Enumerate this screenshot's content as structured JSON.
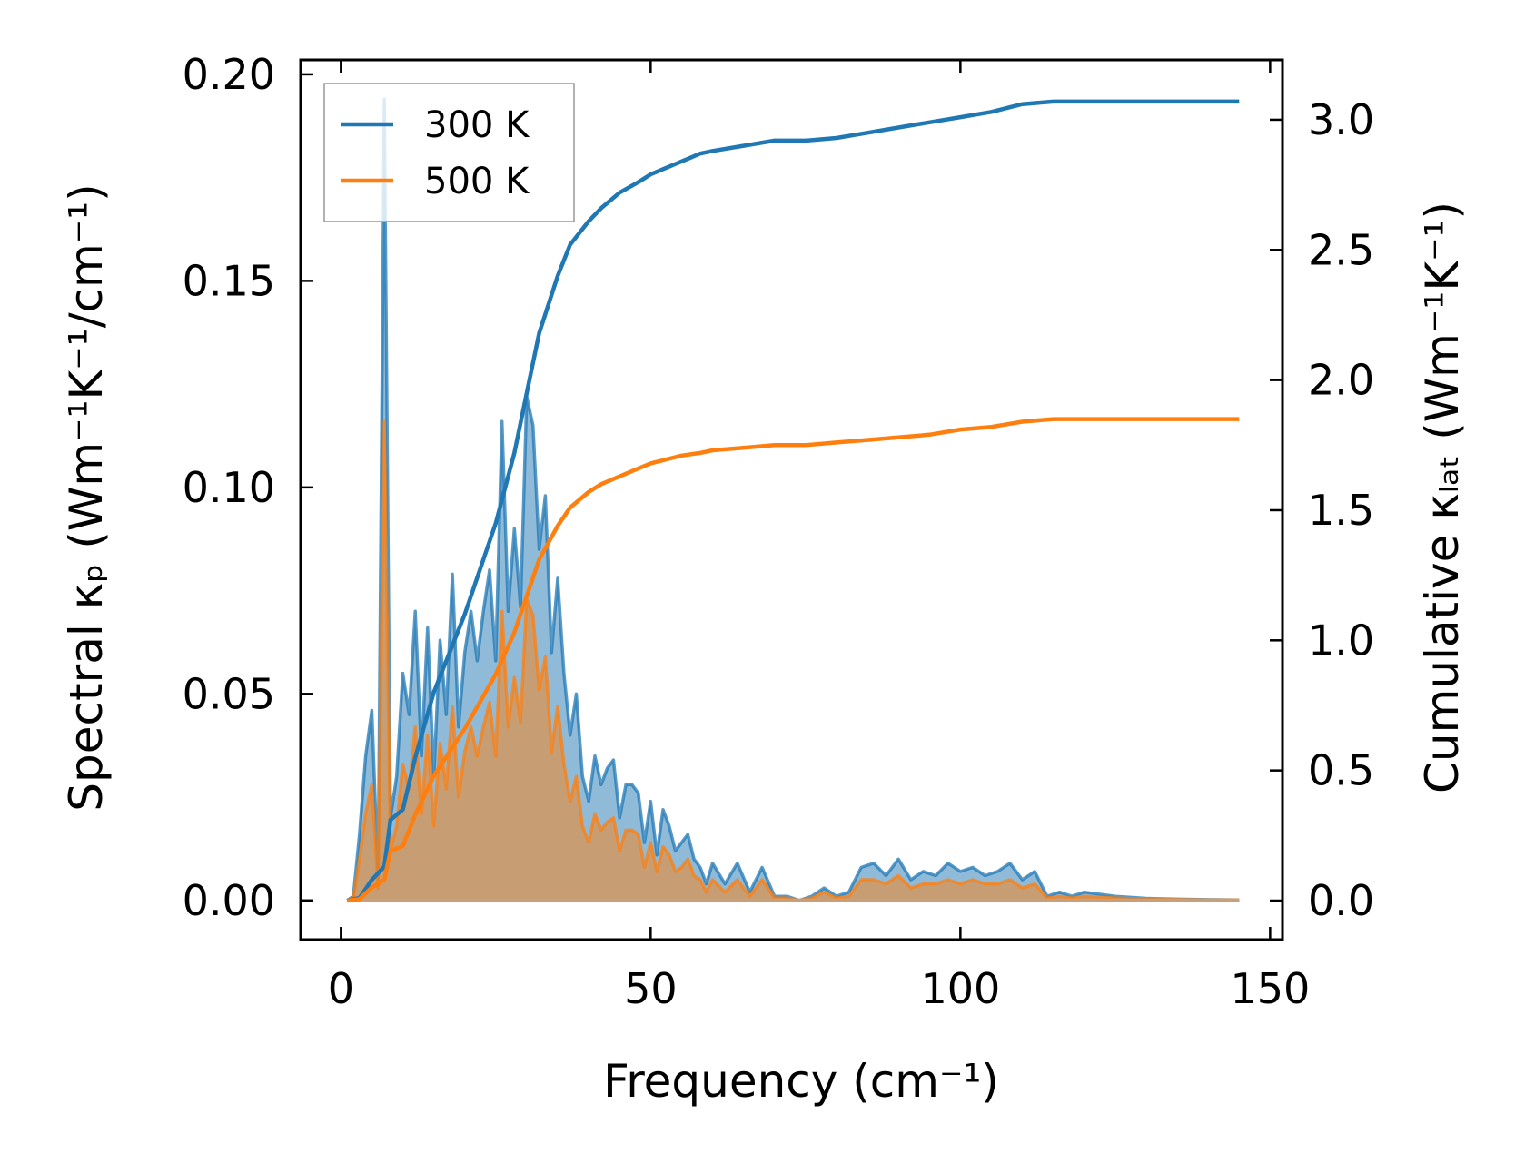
{
  "chart_data": {
    "type": "line",
    "xlabel": "Frequency (cm⁻¹)",
    "ylabel_left": "Spectral κₚ (Wm⁻¹K⁻¹/cm⁻¹)",
    "ylabel_right": "Cumulative κₗₐₜ (Wm⁻¹K⁻¹)",
    "xlim": [
      -6.5,
      152
    ],
    "ylim_left": [
      -0.0095,
      0.2035
    ],
    "ylim_right": [
      -0.15,
      3.23
    ],
    "xticks": [
      0,
      50,
      100,
      150
    ],
    "xtick_labels": [
      "0",
      "50",
      "100",
      "150"
    ],
    "yticks_left": [
      0.0,
      0.05,
      0.1,
      0.15,
      0.2
    ],
    "ytick_labels_left": [
      "0.00",
      "0.05",
      "0.10",
      "0.15",
      "0.20"
    ],
    "yticks_right": [
      0.0,
      0.5,
      1.0,
      1.5,
      2.0,
      2.5,
      3.0
    ],
    "ytick_labels_right": [
      "0.0",
      "0.5",
      "1.0",
      "1.5",
      "2.0",
      "2.5",
      "3.0"
    ],
    "grid": false,
    "legend": {
      "location": "top-left",
      "entries": [
        "300 K",
        "500 K"
      ]
    },
    "colors": {
      "300 K": "#1f77b4",
      "500 K": "#ff7f0e"
    },
    "spectral": {
      "note_axis": "left",
      "x": [
        1,
        2,
        3,
        4,
        5,
        6,
        7,
        8,
        9,
        10,
        11,
        12,
        13,
        14,
        15,
        16,
        17,
        18,
        19,
        20,
        21,
        22,
        23,
        24,
        25,
        26,
        27,
        28,
        29,
        30,
        31,
        32,
        33,
        34,
        35,
        36,
        37,
        38,
        39,
        40,
        41,
        42,
        43,
        44,
        45,
        46,
        47,
        48,
        49,
        50,
        51,
        52,
        53,
        54,
        55,
        56,
        57,
        58,
        59,
        60,
        62,
        64,
        66,
        68,
        70,
        72,
        74,
        76,
        78,
        80,
        82,
        84,
        86,
        88,
        90,
        92,
        94,
        96,
        98,
        100,
        102,
        104,
        106,
        108,
        110,
        112,
        114,
        116,
        118,
        120,
        125,
        130,
        135,
        140,
        145
      ],
      "series": [
        {
          "name": "300 K",
          "values": [
            0.0,
            0.001,
            0.016,
            0.035,
            0.046,
            0.005,
            0.194,
            0.02,
            0.03,
            0.055,
            0.045,
            0.07,
            0.035,
            0.066,
            0.03,
            0.063,
            0.045,
            0.079,
            0.042,
            0.06,
            0.07,
            0.058,
            0.07,
            0.08,
            0.058,
            0.116,
            0.07,
            0.09,
            0.071,
            0.122,
            0.115,
            0.085,
            0.098,
            0.06,
            0.078,
            0.055,
            0.04,
            0.05,
            0.03,
            0.024,
            0.035,
            0.028,
            0.032,
            0.034,
            0.02,
            0.028,
            0.028,
            0.026,
            0.014,
            0.024,
            0.011,
            0.022,
            0.018,
            0.012,
            0.014,
            0.016,
            0.01,
            0.008,
            0.004,
            0.009,
            0.004,
            0.009,
            0.002,
            0.008,
            0.001,
            0.001,
            0.0,
            0.001,
            0.003,
            0.001,
            0.002,
            0.008,
            0.009,
            0.006,
            0.01,
            0.005,
            0.007,
            0.006,
            0.009,
            0.007,
            0.008,
            0.006,
            0.007,
            0.009,
            0.005,
            0.007,
            0.001,
            0.002,
            0.001,
            0.002,
            0.001,
            0.0005,
            0.0003,
            0.0002,
            0.0001
          ]
        },
        {
          "name": "500 K",
          "values": [
            0.0,
            0.0006,
            0.01,
            0.021,
            0.028,
            0.003,
            0.116,
            0.012,
            0.018,
            0.033,
            0.027,
            0.042,
            0.021,
            0.04,
            0.018,
            0.038,
            0.027,
            0.047,
            0.025,
            0.036,
            0.042,
            0.035,
            0.042,
            0.048,
            0.035,
            0.07,
            0.042,
            0.054,
            0.043,
            0.073,
            0.069,
            0.051,
            0.059,
            0.036,
            0.047,
            0.033,
            0.024,
            0.03,
            0.018,
            0.014,
            0.021,
            0.017,
            0.019,
            0.02,
            0.012,
            0.017,
            0.017,
            0.016,
            0.008,
            0.014,
            0.007,
            0.013,
            0.011,
            0.007,
            0.008,
            0.01,
            0.006,
            0.005,
            0.002,
            0.005,
            0.002,
            0.005,
            0.001,
            0.005,
            0.0006,
            0.0006,
            0.0,
            0.0006,
            0.002,
            0.0006,
            0.001,
            0.005,
            0.005,
            0.004,
            0.006,
            0.003,
            0.004,
            0.004,
            0.005,
            0.004,
            0.005,
            0.004,
            0.004,
            0.005,
            0.003,
            0.004,
            0.0006,
            0.001,
            0.0006,
            0.001,
            0.0006,
            0.0003,
            0.0002,
            0.0001,
            0.0001
          ]
        }
      ]
    },
    "cumulative": {
      "note_axis": "right",
      "x": [
        1,
        3,
        5,
        7,
        8,
        10,
        12,
        15,
        20,
        25,
        28,
        30,
        32,
        35,
        37,
        40,
        42,
        45,
        48,
        50,
        55,
        58,
        60,
        65,
        70,
        75,
        80,
        85,
        90,
        95,
        100,
        105,
        110,
        115,
        120,
        125,
        130,
        135,
        140,
        145
      ],
      "series": [
        {
          "name": "300 K",
          "values": [
            0.0,
            0.01,
            0.08,
            0.13,
            0.31,
            0.35,
            0.55,
            0.8,
            1.1,
            1.45,
            1.72,
            1.95,
            2.18,
            2.4,
            2.52,
            2.61,
            2.66,
            2.72,
            2.76,
            2.79,
            2.84,
            2.87,
            2.88,
            2.9,
            2.92,
            2.92,
            2.93,
            2.95,
            2.97,
            2.99,
            3.01,
            3.03,
            3.06,
            3.07,
            3.07,
            3.07,
            3.07,
            3.07,
            3.07,
            3.07
          ]
        },
        {
          "name": "500 K",
          "values": [
            0.0,
            0.006,
            0.05,
            0.08,
            0.19,
            0.21,
            0.33,
            0.48,
            0.66,
            0.87,
            1.03,
            1.17,
            1.31,
            1.44,
            1.51,
            1.57,
            1.6,
            1.63,
            1.66,
            1.68,
            1.71,
            1.72,
            1.73,
            1.74,
            1.75,
            1.75,
            1.76,
            1.77,
            1.78,
            1.79,
            1.81,
            1.82,
            1.84,
            1.85,
            1.85,
            1.85,
            1.85,
            1.85,
            1.85,
            1.85
          ]
        }
      ]
    }
  }
}
